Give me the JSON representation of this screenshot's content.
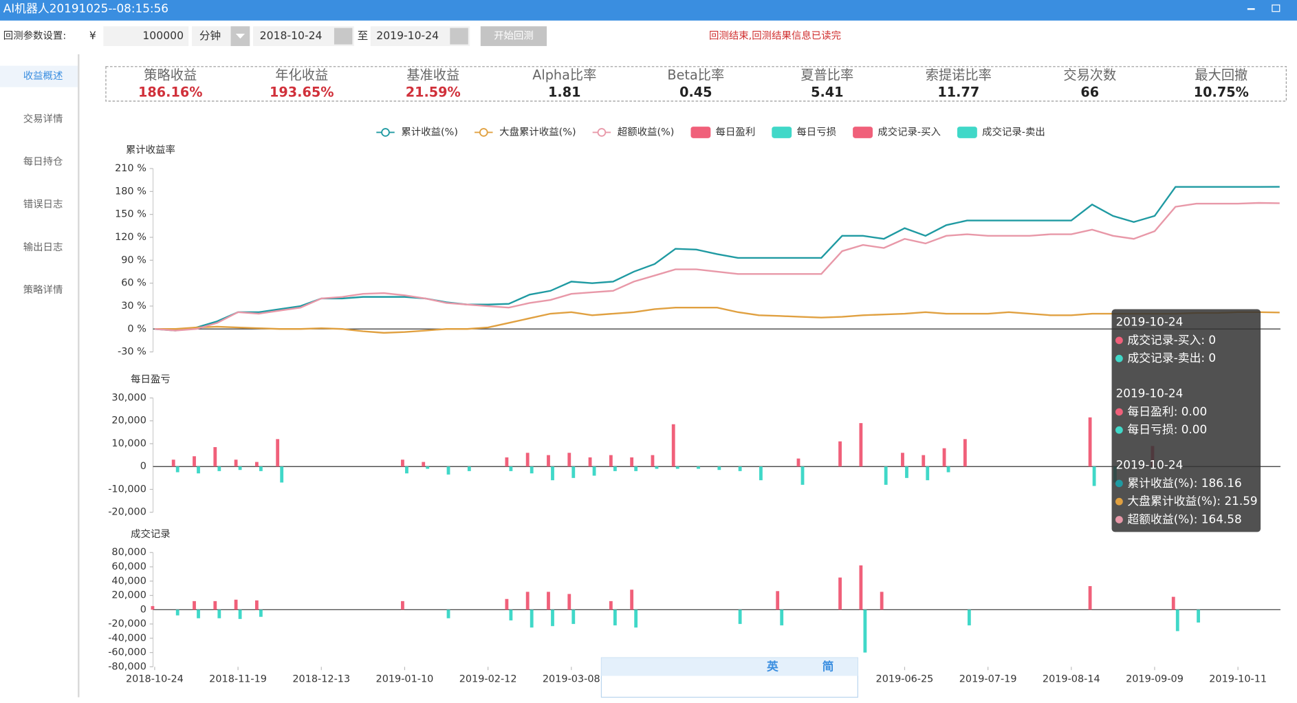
{
  "window": {
    "title": "AI机器人20191025--08:15:56"
  },
  "toolbar": {
    "label": "回测参数设置:",
    "currency": "¥",
    "capital": "100000",
    "frequency": "分钟",
    "start_date": "2018-10-24",
    "separator": "至",
    "end_date": "2019-10-24",
    "button": "开始回测",
    "status": "回测结束,回测结果信息已读完"
  },
  "sidebar": {
    "items": [
      "收益概述",
      "交易详情",
      "每日持仓",
      "错误日志",
      "输出日志",
      "策略详情"
    ],
    "active": 0
  },
  "stats": [
    {
      "label": "策略收益",
      "value": "186.16%"
    },
    {
      "label": "年化收益",
      "value": "193.65%"
    },
    {
      "label": "基准收益",
      "value": "21.59%"
    },
    {
      "label": "Alpha比率",
      "value": "1.81"
    },
    {
      "label": "Beta比率",
      "value": "0.45"
    },
    {
      "label": "夏普比率",
      "value": "5.41"
    },
    {
      "label": "索提诺比率",
      "value": "11.77"
    },
    {
      "label": "交易次数",
      "value": "66"
    },
    {
      "label": "最大回撤",
      "value": "10.75%"
    }
  ],
  "chart_data": [
    {
      "type": "line",
      "title": "累计收益率",
      "ylim": [
        -30,
        210
      ],
      "yticks": [
        {
          "value": -30,
          "label": "-30 %"
        },
        {
          "value": 0,
          "label": "0 %"
        },
        {
          "value": 30,
          "label": "30 %"
        },
        {
          "value": 60,
          "label": "60 %"
        },
        {
          "value": 90,
          "label": "90 %"
        },
        {
          "value": 120,
          "label": "120 %"
        },
        {
          "value": 150,
          "label": "150 %"
        },
        {
          "value": 180,
          "label": "180 %"
        },
        {
          "value": 210,
          "label": "210 %"
        }
      ],
      "series": [
        {
          "name": "累计收益(%)",
          "color": "#1f9aa2",
          "values": [
            0,
            -2,
            2,
            10,
            22,
            22,
            26,
            30,
            40,
            40,
            42,
            42,
            42,
            40,
            35,
            32,
            32,
            33,
            45,
            50,
            62,
            60,
            62,
            75,
            85,
            105,
            104,
            98,
            93,
            93,
            93,
            93,
            93,
            122,
            122,
            118,
            132,
            122,
            136,
            142,
            142,
            142,
            142,
            142,
            142,
            163,
            148,
            140,
            148,
            186,
            186,
            186,
            186,
            186,
            186.16
          ]
        },
        {
          "name": "大盘累计收益(%)",
          "color": "#e0a040",
          "values": [
            0,
            0,
            2,
            3,
            2,
            1,
            0,
            0,
            1,
            0,
            -3,
            -5,
            -4,
            -2,
            0,
            0,
            2,
            8,
            14,
            20,
            22,
            18,
            20,
            22,
            26,
            28,
            28,
            28,
            22,
            18,
            17,
            16,
            15,
            16,
            18,
            19,
            20,
            22,
            20,
            20,
            20,
            22,
            20,
            18,
            18,
            20,
            20,
            20,
            20,
            20,
            21,
            21,
            22,
            22,
            21.59
          ]
        },
        {
          "name": "超额收益(%)",
          "color": "#e898a8",
          "values": [
            0,
            -2,
            0,
            8,
            22,
            20,
            24,
            28,
            40,
            42,
            46,
            47,
            44,
            40,
            34,
            32,
            30,
            28,
            34,
            38,
            46,
            48,
            50,
            62,
            70,
            78,
            78,
            75,
            72,
            72,
            72,
            72,
            72,
            102,
            110,
            106,
            118,
            112,
            122,
            124,
            122,
            122,
            122,
            124,
            124,
            130,
            122,
            118,
            128,
            160,
            164,
            164,
            164,
            165,
            164.58
          ]
        }
      ]
    },
    {
      "type": "bar",
      "title": "每日盈亏",
      "ylim": [
        -20000,
        30000
      ],
      "yticks": [
        {
          "value": -20000,
          "label": "-20,000"
        },
        {
          "value": -10000,
          "label": "-10,000"
        },
        0,
        {
          "value": 10000,
          "label": "10,000"
        },
        {
          "value": 20000,
          "label": "20,000"
        },
        {
          "value": 30000,
          "label": "30,000"
        }
      ],
      "series": [
        {
          "name": "每日盈利",
          "color": "#f0607a",
          "values": [
            0,
            3000,
            4500,
            8500,
            3000,
            2000,
            12000,
            0,
            0,
            0,
            0,
            0,
            3000,
            2000,
            0,
            0,
            0,
            4000,
            6000,
            5000,
            6000,
            4000,
            5000,
            4000,
            5000,
            18500,
            0,
            0,
            0,
            0,
            0,
            3500,
            0,
            11000,
            19000,
            0,
            6000,
            5000,
            8000,
            12000,
            0,
            0,
            0,
            0,
            0,
            21500,
            0,
            0,
            9000,
            0,
            0,
            0,
            0,
            0,
            0
          ]
        },
        {
          "name": "每日亏损",
          "color": "#40d8c8",
          "values": [
            0,
            -2500,
            -3000,
            -2000,
            -1500,
            -2000,
            -7000,
            0,
            0,
            0,
            0,
            0,
            -3000,
            -1000,
            -3500,
            -2000,
            0,
            -2000,
            -3000,
            -6000,
            -5000,
            -4000,
            -2000,
            -2000,
            -1000,
            -1000,
            -1000,
            -1500,
            -2000,
            -6000,
            0,
            -8000,
            0,
            0,
            0,
            -8000,
            -5000,
            -6000,
            -2500,
            0,
            0,
            0,
            0,
            0,
            0,
            -8500,
            -7000,
            0,
            0,
            0,
            0,
            0,
            0,
            0,
            0
          ]
        }
      ]
    },
    {
      "type": "bar",
      "title": "成交记录",
      "ylim": [
        -80000,
        80000
      ],
      "yticks": [
        {
          "value": -80000,
          "label": "-80,000"
        },
        {
          "value": -60000,
          "label": "-60,000"
        },
        {
          "value": -40000,
          "label": "-40,000"
        },
        {
          "value": -20000,
          "label": "-20,000"
        },
        0,
        {
          "value": 20000,
          "label": "20,000"
        },
        {
          "value": 40000,
          "label": "40,000"
        },
        {
          "value": 60000,
          "label": "60,000"
        },
        {
          "value": 80000,
          "label": "80,000"
        }
      ],
      "categories": [
        "2018-10-24",
        null,
        null,
        null,
        "2018-11-19",
        null,
        null,
        null,
        "2018-12-13",
        null,
        null,
        null,
        "2019-01-10",
        null,
        null,
        null,
        "2019-02-12",
        null,
        null,
        null,
        "2019-03-08",
        null,
        null,
        null,
        null,
        null,
        null,
        null,
        null,
        null,
        null,
        null,
        null,
        null,
        null,
        null,
        "2019-06-25",
        null,
        null,
        null,
        "2019-07-19",
        null,
        null,
        null,
        "2019-08-14",
        null,
        null,
        null,
        "2019-09-09",
        null,
        null,
        null,
        "2019-10-11",
        null,
        null
      ],
      "series": [
        {
          "name": "成交记录-买入",
          "color": "#f0607a",
          "values": [
            5000,
            0,
            12000,
            12000,
            14000,
            13000,
            0,
            0,
            0,
            0,
            0,
            0,
            12000,
            0,
            0,
            0,
            0,
            15000,
            25000,
            25000,
            22000,
            0,
            12000,
            28000,
            0,
            0,
            0,
            0,
            0,
            0,
            26000,
            0,
            0,
            45000,
            62000,
            25000,
            0,
            0,
            0,
            0,
            0,
            0,
            0,
            0,
            0,
            33000,
            0,
            0,
            0,
            18000,
            0,
            0,
            0,
            0,
            0
          ]
        },
        {
          "name": "成交记录-卖出",
          "color": "#40d8c8",
          "values": [
            0,
            -8000,
            -12000,
            -12000,
            -13000,
            -10000,
            0,
            0,
            0,
            0,
            0,
            0,
            0,
            0,
            -12000,
            0,
            0,
            -15000,
            -25000,
            -23000,
            -20000,
            0,
            -22000,
            -25000,
            0,
            0,
            0,
            0,
            -20000,
            0,
            -22000,
            0,
            0,
            0,
            -60000,
            0,
            0,
            0,
            0,
            -22000,
            0,
            0,
            0,
            0,
            0,
            0,
            0,
            0,
            0,
            -30000,
            -18000,
            0,
            0,
            0,
            0
          ]
        }
      ]
    }
  ],
  "tooltip": [
    {
      "date": "2019-10-24",
      "items": [
        "成交记录-买入: 0",
        "成交记录-卖出: 0"
      ]
    },
    {
      "date": "2019-10-24",
      "items": [
        "每日盈利: 0.00",
        "每日亏损: 0.00"
      ]
    },
    {
      "date": "2019-10-24",
      "items": [
        "累计收益(%): 186.16",
        "大盘累计收益(%): 21.59",
        "超额收益(%): 164.58"
      ]
    }
  ],
  "ime": {
    "labels": [
      "英",
      "简"
    ]
  }
}
